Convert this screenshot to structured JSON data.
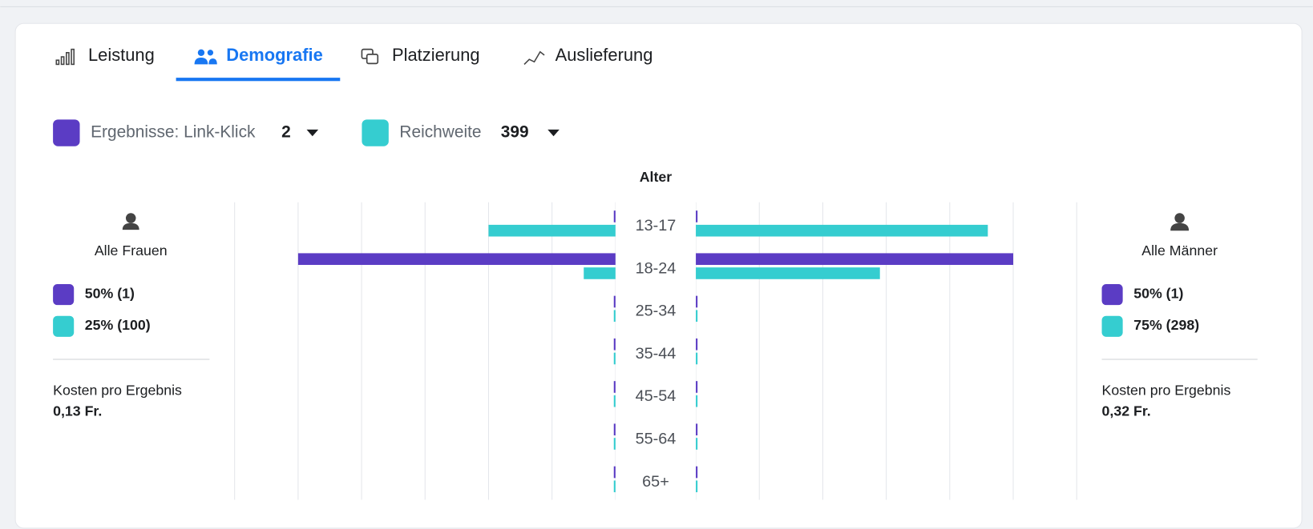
{
  "tabs": [
    "Leistung",
    "Demografie",
    "Platzierung",
    "Auslieferung"
  ],
  "active_tab": 1,
  "chart_data": {
    "type": "butterfly",
    "title": "Alter",
    "categories": [
      "13-17",
      "18-24",
      "25-34",
      "35-44",
      "45-54",
      "55-64",
      "65+"
    ],
    "xlim": [
      0,
      60
    ],
    "xticks": [
      0,
      10,
      20,
      30,
      40,
      50,
      60
    ],
    "grid": true,
    "series": [
      {
        "name": "Ergebnisse: Link-Klick",
        "total": 2,
        "color": "#5b3cc4",
        "women": [
          0,
          50,
          0,
          0,
          0,
          0,
          0
        ],
        "men": [
          0,
          50,
          0,
          0,
          0,
          0,
          0
        ]
      },
      {
        "name": "Reichweite",
        "total": 399,
        "color": "#35cdd0",
        "women": [
          20,
          5,
          0,
          0,
          0,
          0,
          0
        ],
        "men": [
          46,
          29,
          0,
          0,
          0,
          0,
          0
        ]
      }
    ]
  },
  "panels": {
    "women": {
      "label": "Alle Frauen",
      "results": "50% (1)",
      "reach": "25% (100)",
      "cost_label": "Kosten pro Ergebnis",
      "cost": "0,13 Fr."
    },
    "men": {
      "label": "Alle Männer",
      "results": "50% (1)",
      "reach": "75% (298)",
      "cost_label": "Kosten pro Ergebnis",
      "cost": "0,32 Fr."
    }
  }
}
